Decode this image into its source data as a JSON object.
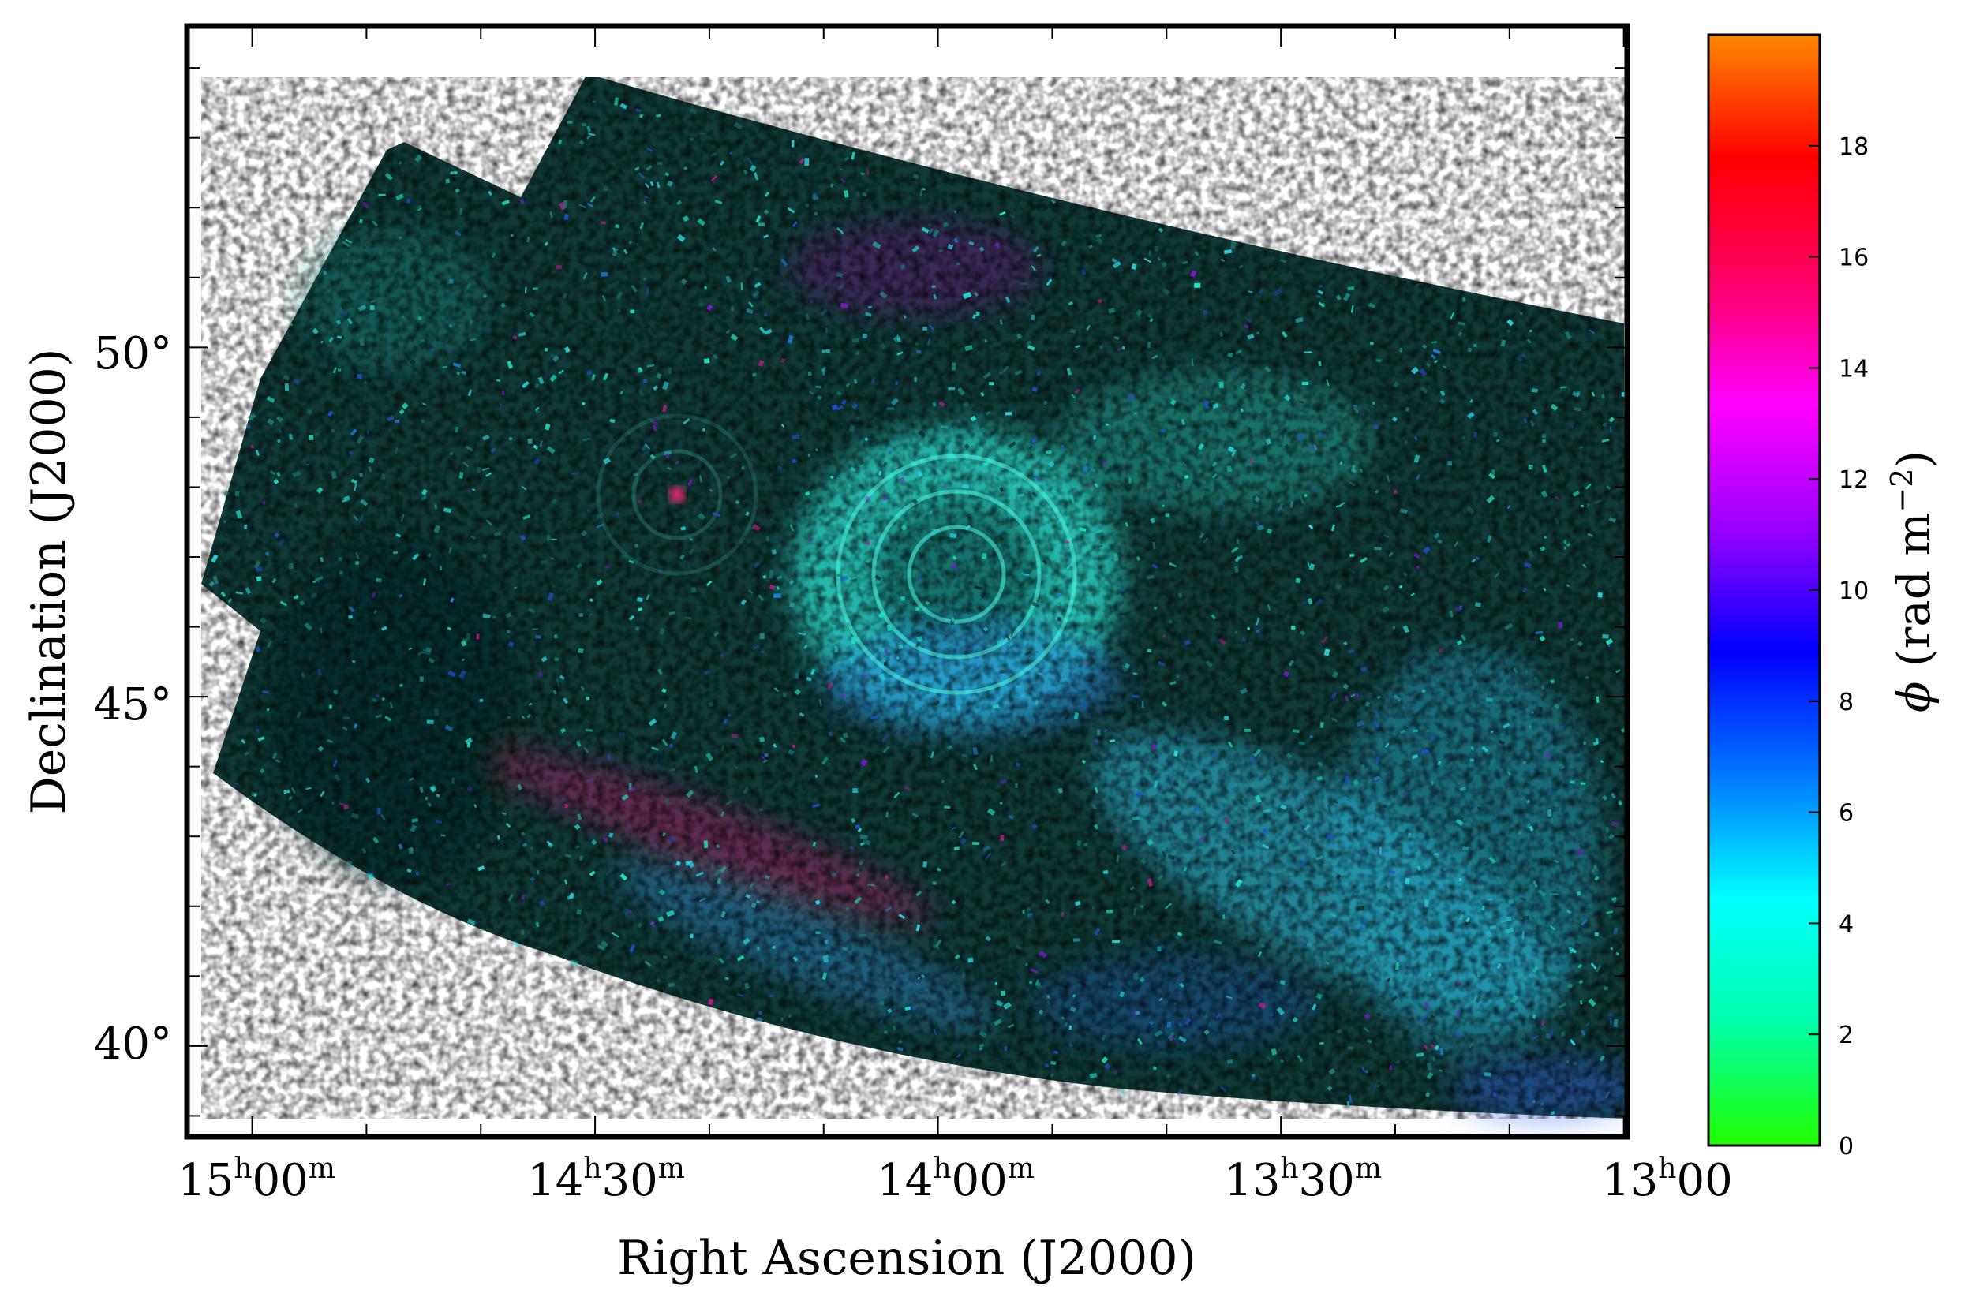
{
  "chart_data": {
    "type": "heatmap",
    "title": "",
    "xlabel": "Right Ascension (J2000)",
    "ylabel": "Declination (J2000)",
    "x_ticks": [
      {
        "value": "15h00m",
        "h": "15",
        "m": "00"
      },
      {
        "value": "14h30m",
        "h": "14",
        "m": "30"
      },
      {
        "value": "14h00m",
        "h": "14",
        "m": "00"
      },
      {
        "value": "13h30m",
        "h": "13",
        "m": "30"
      },
      {
        "value": "13h00m",
        "h": "13",
        "m": "00"
      }
    ],
    "y_ticks": [
      {
        "value": 50,
        "label": "50°"
      },
      {
        "value": 45,
        "label": "45°"
      },
      {
        "value": 40,
        "label": "40°"
      }
    ],
    "xlim_hours": [
      15.095,
      12.995
    ],
    "ylim_deg": [
      38.7,
      54.6
    ],
    "colorbar": {
      "label": "ϕ (rad m⁻²)",
      "label_parts": {
        "symbol": "ϕ",
        "unit": "(rad m",
        "exp": "−2",
        "close": ")"
      },
      "range": [
        0,
        20
      ],
      "ticks": [
        0,
        2,
        4,
        6,
        8,
        10,
        12,
        14,
        16,
        18
      ],
      "colors": [
        "#22ff00",
        "#00ffaa",
        "#00ffff",
        "#0077ff",
        "#0000ff",
        "#9900ff",
        "#ff00ff",
        "#ff0066",
        "#ff0000",
        "#ff8800"
      ]
    },
    "bright_features": [
      {
        "name": "central ring source",
        "ra_h": 14.0,
        "dec": 47.0,
        "value": 5
      },
      {
        "name": "compact source",
        "ra_h": 14.37,
        "dec": 48.0,
        "value": 16
      }
    ]
  }
}
